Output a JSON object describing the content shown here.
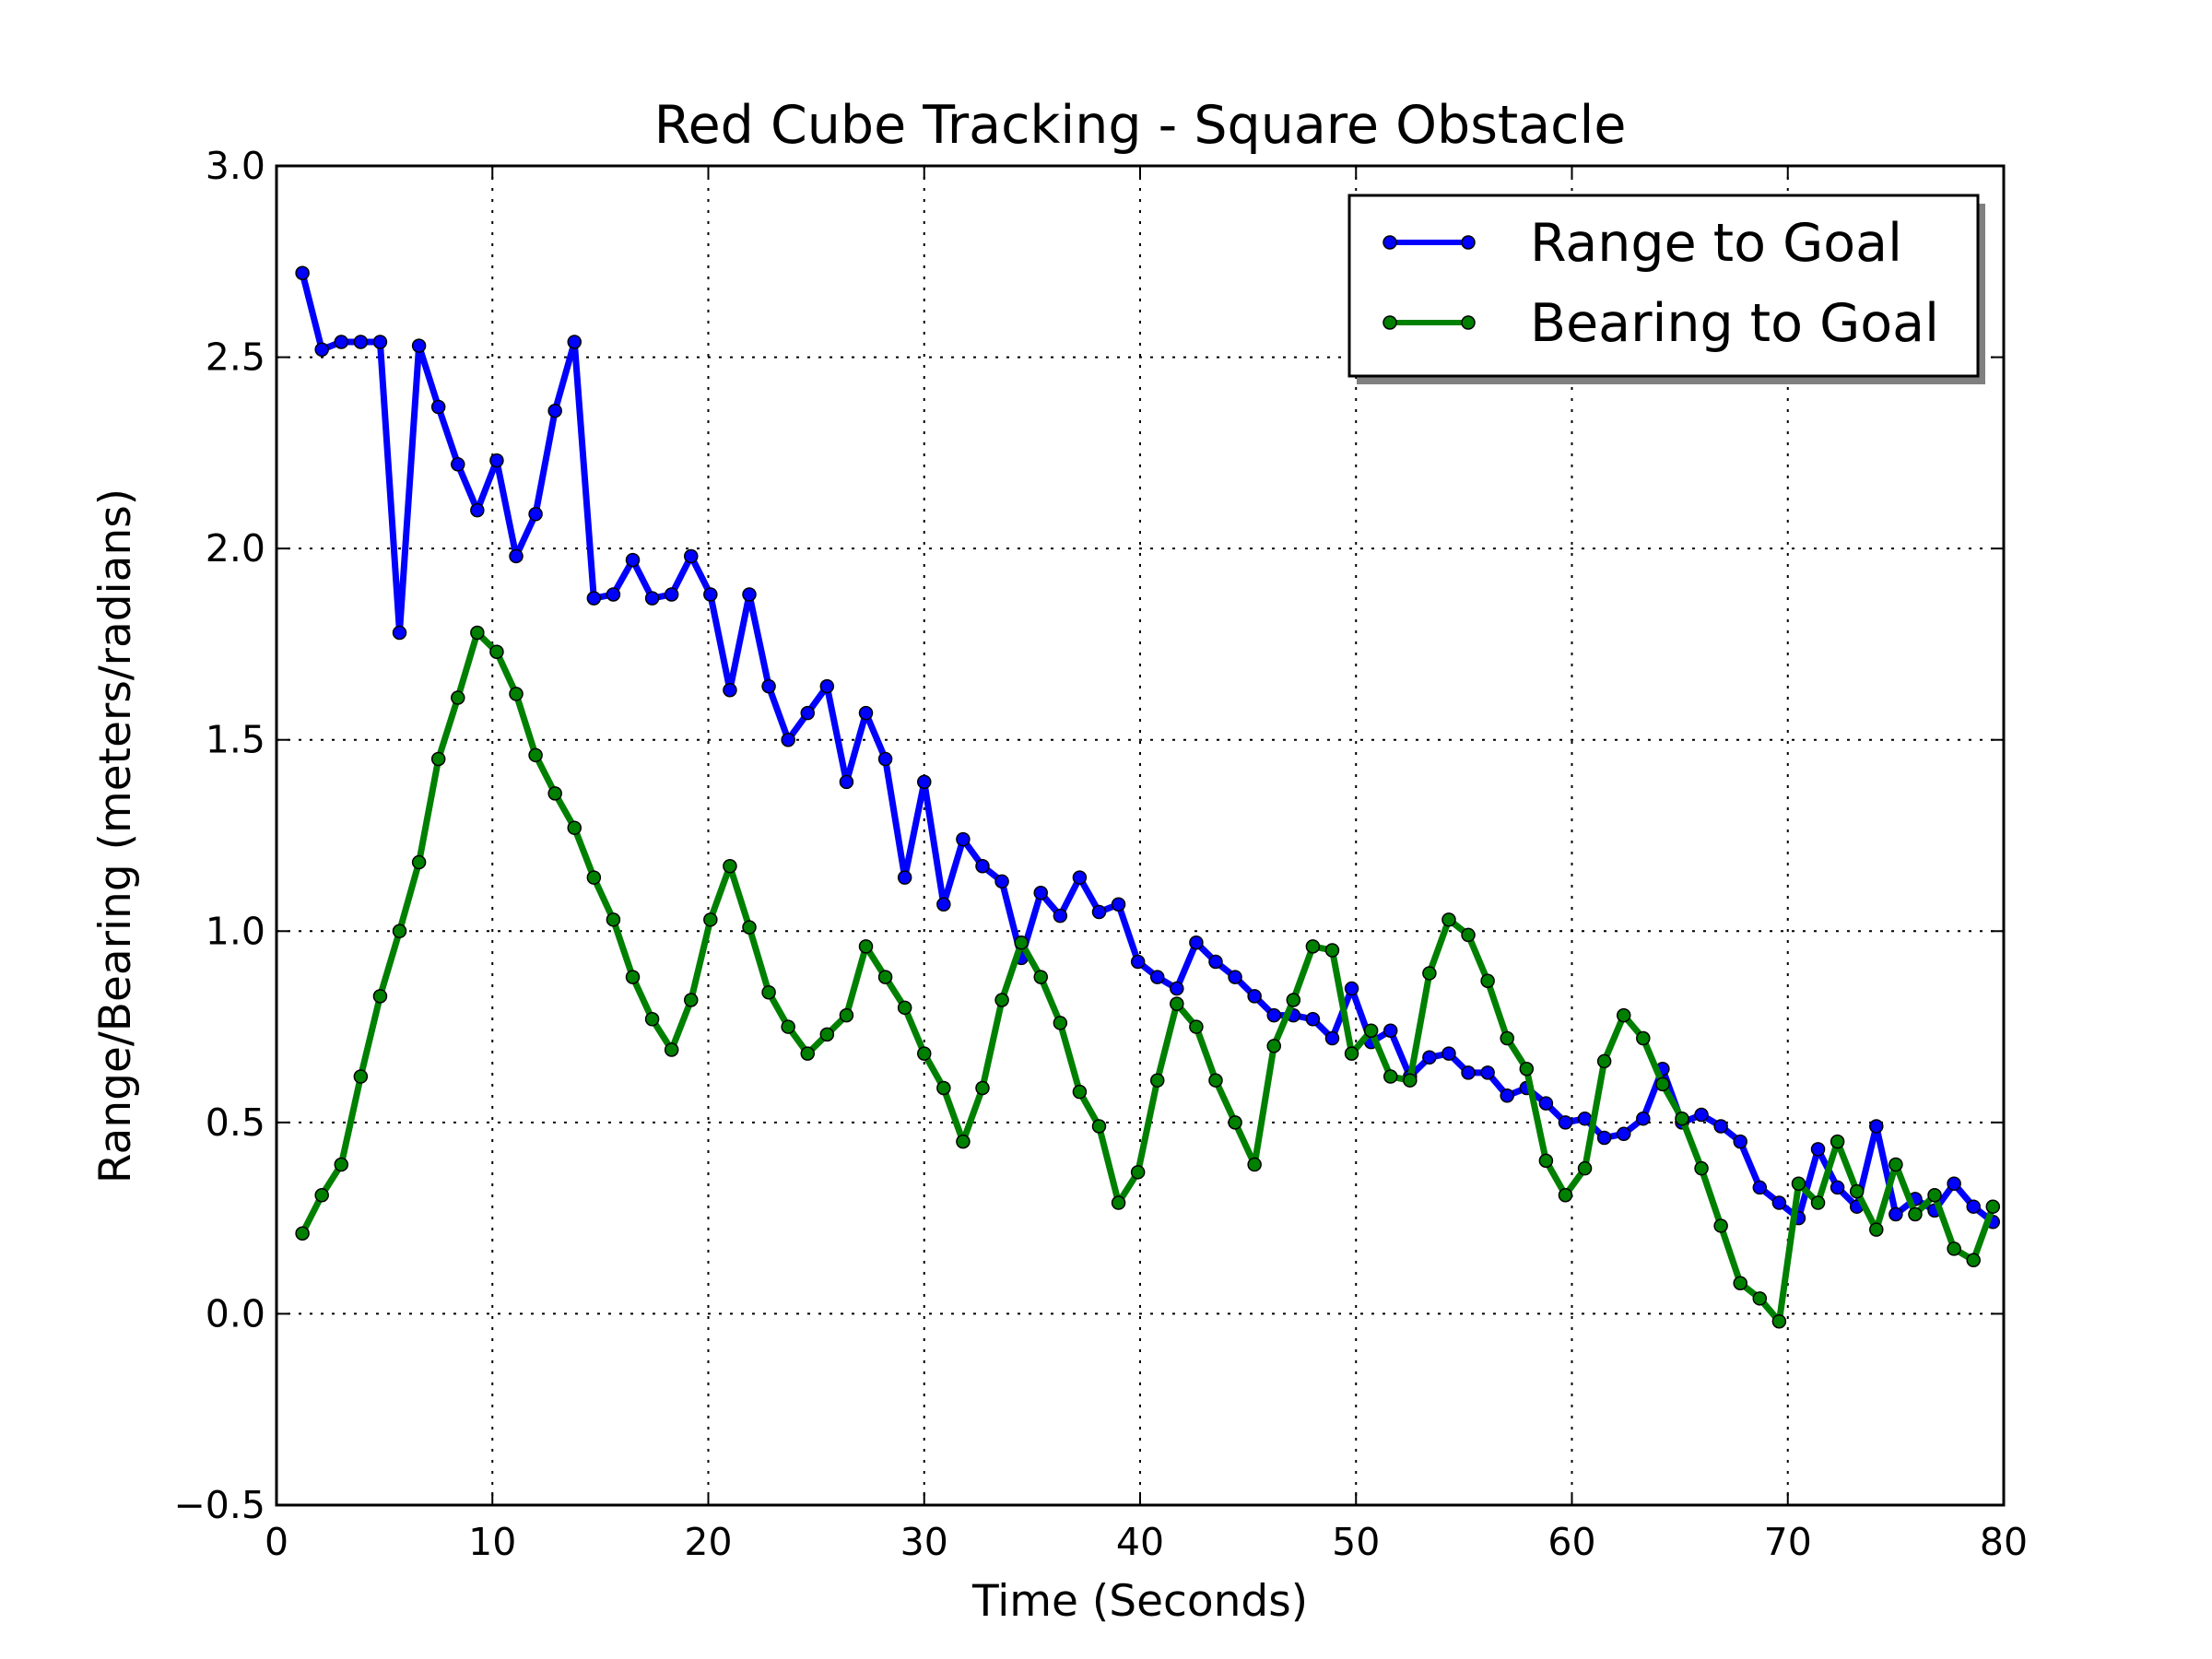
{
  "chart_data": {
    "type": "line",
    "title": "Red Cube Tracking - Square Obstacle",
    "xlabel": "Time (Seconds)",
    "ylabel": "Range/Bearing (meters/radians)",
    "xlim": [
      0,
      80
    ],
    "ylim": [
      -0.5,
      3.0
    ],
    "xticks": [
      0,
      10,
      20,
      30,
      40,
      50,
      60,
      70,
      80
    ],
    "xtick_labels": [
      "0",
      "10",
      "20",
      "30",
      "40",
      "50",
      "60",
      "70",
      "80"
    ],
    "yticks": [
      -0.5,
      0.0,
      0.5,
      1.0,
      1.5,
      2.0,
      2.5,
      3.0
    ],
    "ytick_labels": [
      "−0.5",
      "0.0",
      "0.5",
      "1.0",
      "1.5",
      "2.0",
      "2.5",
      "3.0"
    ],
    "grid": true,
    "legend_position": "top-right",
    "x": [
      1.2,
      2.1,
      3.0,
      3.9,
      4.8,
      5.7,
      6.6,
      7.5,
      8.4,
      9.3,
      10.2,
      11.1,
      12.0,
      12.9,
      13.8,
      14.7,
      15.6,
      16.5,
      17.4,
      18.3,
      19.2,
      20.1,
      21.0,
      21.9,
      22.8,
      23.7,
      24.6,
      25.5,
      26.4,
      27.3,
      28.2,
      29.1,
      30.0,
      30.9,
      31.8,
      32.7,
      33.6,
      34.5,
      35.4,
      36.3,
      37.2,
      38.1,
      39.0,
      39.9,
      40.8,
      41.7,
      42.6,
      43.5,
      44.4,
      45.3,
      46.2,
      47.1,
      48.0,
      48.9,
      49.8,
      50.7,
      51.6,
      52.5,
      53.4,
      54.3,
      55.2,
      56.1,
      57.0,
      57.9,
      58.8,
      59.7,
      60.6,
      61.5,
      62.4,
      63.3,
      64.2,
      65.1,
      66.0,
      66.9,
      67.8,
      68.7,
      69.6,
      70.5,
      71.4,
      72.3,
      73.2,
      74.1,
      75.0,
      75.9,
      76.8,
      77.7,
      78.6,
      79.5
    ],
    "series": [
      {
        "name": "Range to Goal",
        "color": "#0000ff",
        "values": [
          2.72,
          2.52,
          2.54,
          2.54,
          2.54,
          1.78,
          2.53,
          2.37,
          2.22,
          2.1,
          2.23,
          1.98,
          2.09,
          2.36,
          2.54,
          1.87,
          1.88,
          1.97,
          1.87,
          1.88,
          1.98,
          1.88,
          1.63,
          1.88,
          1.64,
          1.5,
          1.57,
          1.64,
          1.39,
          1.57,
          1.45,
          1.14,
          1.39,
          1.07,
          1.24,
          1.17,
          1.13,
          0.93,
          1.1,
          1.04,
          1.14,
          1.05,
          1.07,
          0.92,
          0.88,
          0.85,
          0.97,
          0.92,
          0.88,
          0.83,
          0.78,
          0.78,
          0.77,
          0.72,
          0.85,
          0.71,
          0.74,
          0.62,
          0.67,
          0.68,
          0.63,
          0.63,
          0.57,
          0.59,
          0.55,
          0.5,
          0.51,
          0.46,
          0.47,
          0.51,
          0.64,
          0.5,
          0.52,
          0.49,
          0.45,
          0.33,
          0.29,
          0.25,
          0.43,
          0.33,
          0.28,
          0.49,
          0.26,
          0.3,
          0.27,
          0.34,
          0.28,
          0.24
        ]
      },
      {
        "name": "Bearing to Goal",
        "color": "#008000",
        "values": [
          0.21,
          0.31,
          0.39,
          0.62,
          0.83,
          1.0,
          1.18,
          1.45,
          1.61,
          1.78,
          1.73,
          1.62,
          1.46,
          1.36,
          1.27,
          1.14,
          1.03,
          0.88,
          0.77,
          0.69,
          0.82,
          1.03,
          1.17,
          1.01,
          0.84,
          0.75,
          0.68,
          0.73,
          0.78,
          0.96,
          0.88,
          0.8,
          0.68,
          0.59,
          0.45,
          0.59,
          0.82,
          0.97,
          0.88,
          0.76,
          0.58,
          0.49,
          0.29,
          0.37,
          0.61,
          0.81,
          0.75,
          0.61,
          0.5,
          0.39,
          0.7,
          0.82,
          0.96,
          0.95,
          0.68,
          0.74,
          0.62,
          0.61,
          0.89,
          1.03,
          0.99,
          0.87,
          0.72,
          0.64,
          0.4,
          0.31,
          0.38,
          0.66,
          0.78,
          0.72,
          0.6,
          0.51,
          0.38,
          0.23,
          0.08,
          0.04,
          -0.02,
          0.34,
          0.29,
          0.45,
          0.32,
          0.22,
          0.39,
          0.26,
          0.31,
          0.17,
          0.14,
          0.28
        ]
      }
    ]
  }
}
